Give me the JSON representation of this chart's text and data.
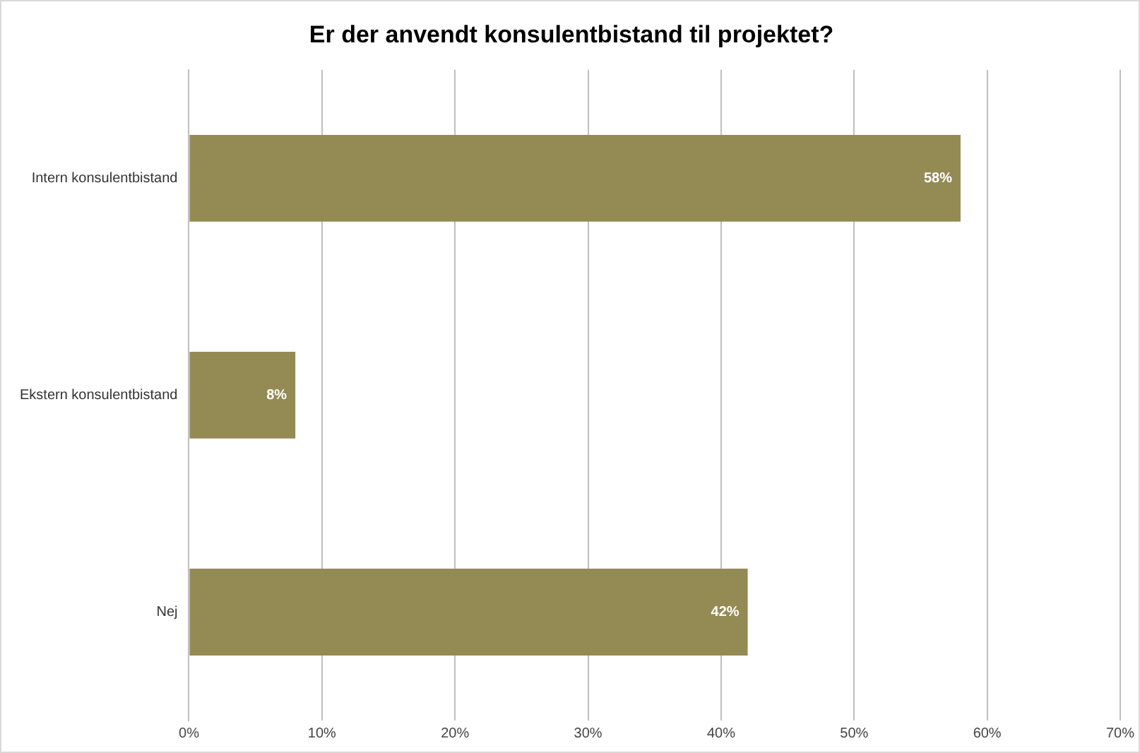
{
  "chart_data": {
    "type": "bar",
    "orientation": "horizontal",
    "title": "Er der anvendt konsulentbistand til projektet?",
    "categories": [
      "Intern konsulentbistand",
      "Ekstern konsulentbistand",
      "Nej"
    ],
    "values": [
      58,
      8,
      42
    ],
    "value_labels": [
      "58%",
      "8%",
      "42%"
    ],
    "color": "#948a54",
    "xlim": [
      0,
      70
    ],
    "xticks": [
      {
        "value": 0,
        "label": "0%"
      },
      {
        "value": 10,
        "label": "10%"
      },
      {
        "value": 20,
        "label": "20%"
      },
      {
        "value": 30,
        "label": "30%"
      },
      {
        "value": 40,
        "label": "40%"
      },
      {
        "value": 50,
        "label": "50%"
      },
      {
        "value": 60,
        "label": "60%"
      },
      {
        "value": 70,
        "label": "70%"
      }
    ],
    "grid": "x",
    "legend": false
  }
}
